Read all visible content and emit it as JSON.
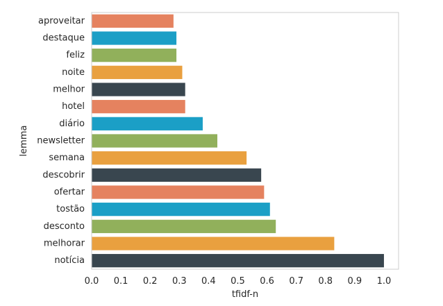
{
  "chart_data": {
    "type": "bar",
    "orientation": "horizontal",
    "title": "",
    "xlabel": "tfidf-n",
    "ylabel": "lemma",
    "xlim": [
      0,
      1.05
    ],
    "xticks": [
      "0.0",
      "0.1",
      "0.2",
      "0.3",
      "0.4",
      "0.5",
      "0.6",
      "0.7",
      "0.8",
      "0.9",
      "1.0"
    ],
    "grid": false,
    "categories": [
      "aproveitar",
      "destaque",
      "feliz",
      "noite",
      "melhor",
      "hotel",
      "diário",
      "newsletter",
      "semana",
      "descobrir",
      "ofertar",
      "tostão",
      "desconto",
      "melhorar",
      "notícia"
    ],
    "values": [
      0.28,
      0.29,
      0.29,
      0.31,
      0.32,
      0.32,
      0.38,
      0.43,
      0.53,
      0.58,
      0.59,
      0.61,
      0.63,
      0.83,
      1.0
    ],
    "colors": [
      "#E5825F",
      "#1B9FC6",
      "#91B05B",
      "#E9A03F",
      "#39464F",
      "#E5825F",
      "#1B9FC6",
      "#91B05B",
      "#E9A03F",
      "#39464F",
      "#E5825F",
      "#1B9FC6",
      "#91B05B",
      "#E9A03F",
      "#39464F"
    ]
  }
}
